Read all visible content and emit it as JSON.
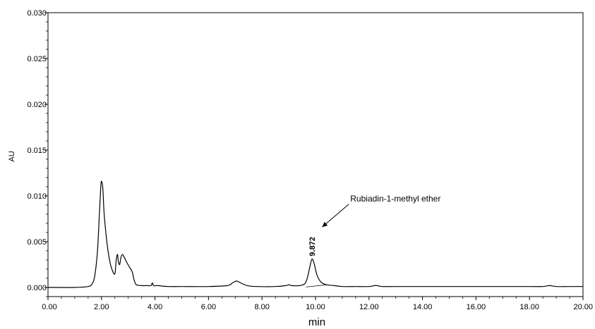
{
  "chart_data": {
    "type": "line",
    "title": "",
    "xlabel": "min",
    "ylabel": "AU",
    "xlim": [
      0,
      20
    ],
    "ylim": [
      -0.001,
      0.03
    ],
    "x_ticks": [
      "0.00",
      "2.00",
      "4.00",
      "6.00",
      "8.00",
      "10.00",
      "12.00",
      "14.00",
      "16.00",
      "18.00",
      "20.00"
    ],
    "y_ticks": [
      "0.000",
      "0.005",
      "0.010",
      "0.015",
      "0.020",
      "0.025",
      "0.030"
    ],
    "grid": false,
    "series": [
      {
        "x": [
          0,
          1.0,
          1.5,
          1.65,
          1.75,
          1.85,
          1.92,
          1.97,
          2.0,
          2.05,
          2.1,
          2.2,
          2.3,
          2.4,
          2.5,
          2.55,
          2.6,
          2.63,
          2.68,
          2.72,
          2.78,
          2.85,
          2.95,
          3.05,
          3.15,
          3.22,
          3.3,
          3.5,
          3.7,
          3.85,
          3.9,
          3.95,
          4.1,
          4.5,
          5.0,
          6.0,
          6.7,
          6.9,
          7.05,
          7.2,
          7.45,
          7.8,
          8.5,
          8.9,
          9.0,
          9.1,
          9.4,
          9.6,
          9.7,
          9.8,
          9.87,
          9.95,
          10.05,
          10.2,
          10.4,
          10.7,
          11.0,
          11.5,
          12.0,
          12.2,
          12.3,
          12.5,
          13.0,
          14.0,
          15.0,
          16.0,
          17.0,
          18.0,
          18.5,
          18.75,
          19.0,
          19.5,
          20.0
        ],
        "y": [
          0.0,
          0.0,
          0.0001,
          0.0004,
          0.0013,
          0.004,
          0.008,
          0.0108,
          0.0116,
          0.0108,
          0.008,
          0.005,
          0.003,
          0.0019,
          0.0015,
          0.003,
          0.0036,
          0.0028,
          0.0025,
          0.0032,
          0.0036,
          0.0033,
          0.0027,
          0.0022,
          0.0017,
          0.0008,
          0.0003,
          0.0002,
          0.0002,
          0.0002,
          0.0005,
          0.0002,
          0.0002,
          0.0001,
          0.0001,
          0.0001,
          0.0002,
          0.0005,
          0.0007,
          0.0005,
          0.0002,
          0.0001,
          0.0001,
          0.0002,
          0.0003,
          0.0002,
          0.0002,
          0.0004,
          0.0011,
          0.0024,
          0.0031,
          0.0026,
          0.0014,
          0.0006,
          0.0003,
          0.0002,
          0.0001,
          0.0001,
          0.0001,
          0.0002,
          0.0002,
          0.0001,
          0.0001,
          0.0001,
          0.0001,
          0.0001,
          0.0001,
          0.0001,
          0.0001,
          0.0002,
          0.0001,
          0.0001,
          0.0001
        ]
      }
    ],
    "peak_labels": [
      {
        "x": 9.872,
        "y": 0.0031,
        "text": "9.872"
      }
    ],
    "annotations": [
      {
        "text": "Rubiadin-1-methyl ether",
        "text_x": 11.3,
        "text_y": 0.0094,
        "arrow_to_x": 10.25,
        "arrow_to_y": 0.0066
      }
    ]
  }
}
